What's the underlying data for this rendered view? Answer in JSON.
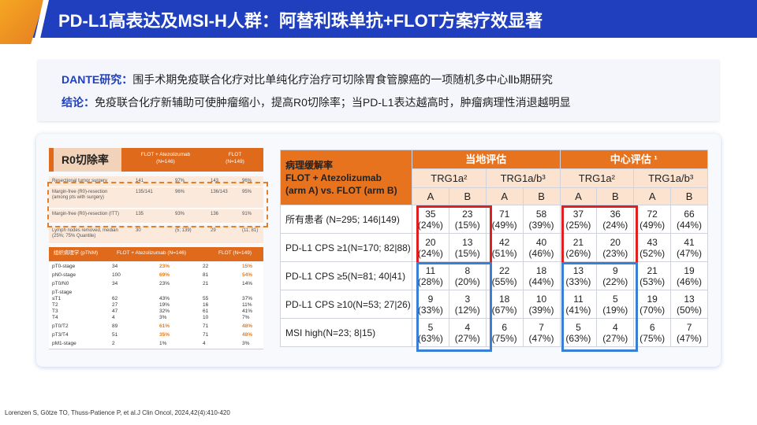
{
  "title": "PD-L1高表达及MSI-H人群：阿替利珠单抗+FLOT方案疗效显著",
  "intro": {
    "line1_label": "DANTE研究：",
    "line1_text": "围手术期免疫联合化疗对比单纯化疗治疗可切除胃食管腺癌的一项随机多中心Ⅱb期研究",
    "line2_label": "结论：",
    "line2_text": "免疫联合化疗新辅助可使肿瘤缩小，提高R0切除率；当PD-L1表达越高时，肿瘤病理性消退越明显"
  },
  "left_table": {
    "title": "R0切除率",
    "col1": "FLOT + Atezolizumab",
    "col1_n": "(N=146)",
    "col2": "FLOT",
    "col2_n": "(N=149)",
    "rows": [
      {
        "label": "Resectional tumor surgery",
        "a": "141",
        "ap": "97%",
        "b": "143",
        "bp": "96%"
      },
      {
        "label": "Margin-free (R0)-resection (among pts with surgery)",
        "a": "135/141",
        "ap": "96%",
        "b": "136/143",
        "bp": "95%"
      },
      {
        "label": "Margin-free (R0)-resection (ITT)",
        "a": "135",
        "ap": "93%",
        "b": "136",
        "bp": "91%"
      },
      {
        "label": "Lymph nodes removed, median (25%; 75% Quantile)",
        "a": "30",
        "ap": "(5; 139)",
        "b": "29",
        "bp": "(11; 81)"
      }
    ]
  },
  "left_table2": {
    "h0": "组织病理学 (pTNM)",
    "h1": "FLOT + Atezolizumab (N=146)",
    "h2": "FLOT (N=149)",
    "rows": [
      {
        "label": "pT0-stage",
        "a": "34",
        "ap": "23%",
        "b": "22",
        "bp": "15%",
        "hl": true
      },
      {
        "label": "pN0-stage",
        "a": "100",
        "ap": "69%",
        "b": "81",
        "bp": "54%",
        "hl": true
      },
      {
        "label": "pT0/N0",
        "a": "34",
        "ap": "23%",
        "b": "21",
        "bp": "14%",
        "hl": false
      },
      {
        "label": "pT-stage\n≤T1\nT2\nT3\nT4",
        "a": "\n62\n27\n47\n4",
        "ap": "\n43%\n19%\n32%\n3%",
        "b": "\n55\n16\n61\n10",
        "bp": "\n37%\n11%\n41%\n7%",
        "hl": false
      },
      {
        "label": "pT0/T2",
        "a": "89",
        "ap": "61%",
        "b": "71",
        "bp": "48%",
        "hl": true
      },
      {
        "label": "pT3/T4",
        "a": "51",
        "ap": "35%",
        "b": "71",
        "bp": "48%",
        "hl": true
      },
      {
        "label": "pM1-stage",
        "a": "2",
        "ap": "1%",
        "b": "4",
        "bp": "3%",
        "hl": false
      }
    ]
  },
  "right_table": {
    "corner": "病理缓解率\nFLOT + Atezolizumab\n(arm A) vs. FLOT (arm B)",
    "local": "当地评估",
    "central": "中心评估 ¹",
    "trg1": "TRG1a²",
    "trg2": "TRG1a/b³",
    "A": "A",
    "B": "B",
    "rows": [
      {
        "label": "所有患者 (N=295; 146|149)",
        "v": [
          "35\n(24%)",
          "23\n(15%)",
          "71\n(49%)",
          "58\n(39%)",
          "37\n(25%)",
          "36\n(24%)",
          "72\n(49%)",
          "66\n(44%)"
        ]
      },
      {
        "label": "PD-L1 CPS ≥1(N=170; 82|88)",
        "v": [
          "20\n(24%)",
          "13\n(15%)",
          "42\n(51%)",
          "40\n(46%)",
          "21\n(26%)",
          "20\n(23%)",
          "43\n(52%)",
          "41\n(47%)"
        ]
      },
      {
        "label": "PD-L1 CPS ≥5(N=81; 40|41)",
        "v": [
          "11\n(28%)",
          "8\n(20%)",
          "22\n(55%)",
          "18\n(44%)",
          "13\n(33%)",
          "9\n(22%)",
          "21\n(53%)",
          "19\n(46%)"
        ]
      },
      {
        "label": "PD-L1 CPS ≥10(N=53; 27|26)",
        "v": [
          "9\n(33%)",
          "3\n(12%)",
          "18\n(67%)",
          "10\n(39%)",
          "11\n(41%)",
          "5\n(19%)",
          "19\n(70%)",
          "13\n(50%)"
        ]
      },
      {
        "label": "MSI high(N=23; 8|15)",
        "v": [
          "5\n(63%)",
          "4\n(27%)",
          "6\n(75%)",
          "7\n(47%)",
          "5\n(63%)",
          "4\n(27%)",
          "6\n(75%)",
          "7\n(47%)"
        ]
      }
    ]
  },
  "footer": "Lorenzen S, Götze TO, Thuss-Patience P, et al.J Clin Oncol, 2024,42(4):410-420",
  "colors": {
    "brand_blue": "#1f3fbf",
    "accent_orange": "#e8731e",
    "red_box": "#e02020",
    "blue_box": "#3a7fd6"
  }
}
